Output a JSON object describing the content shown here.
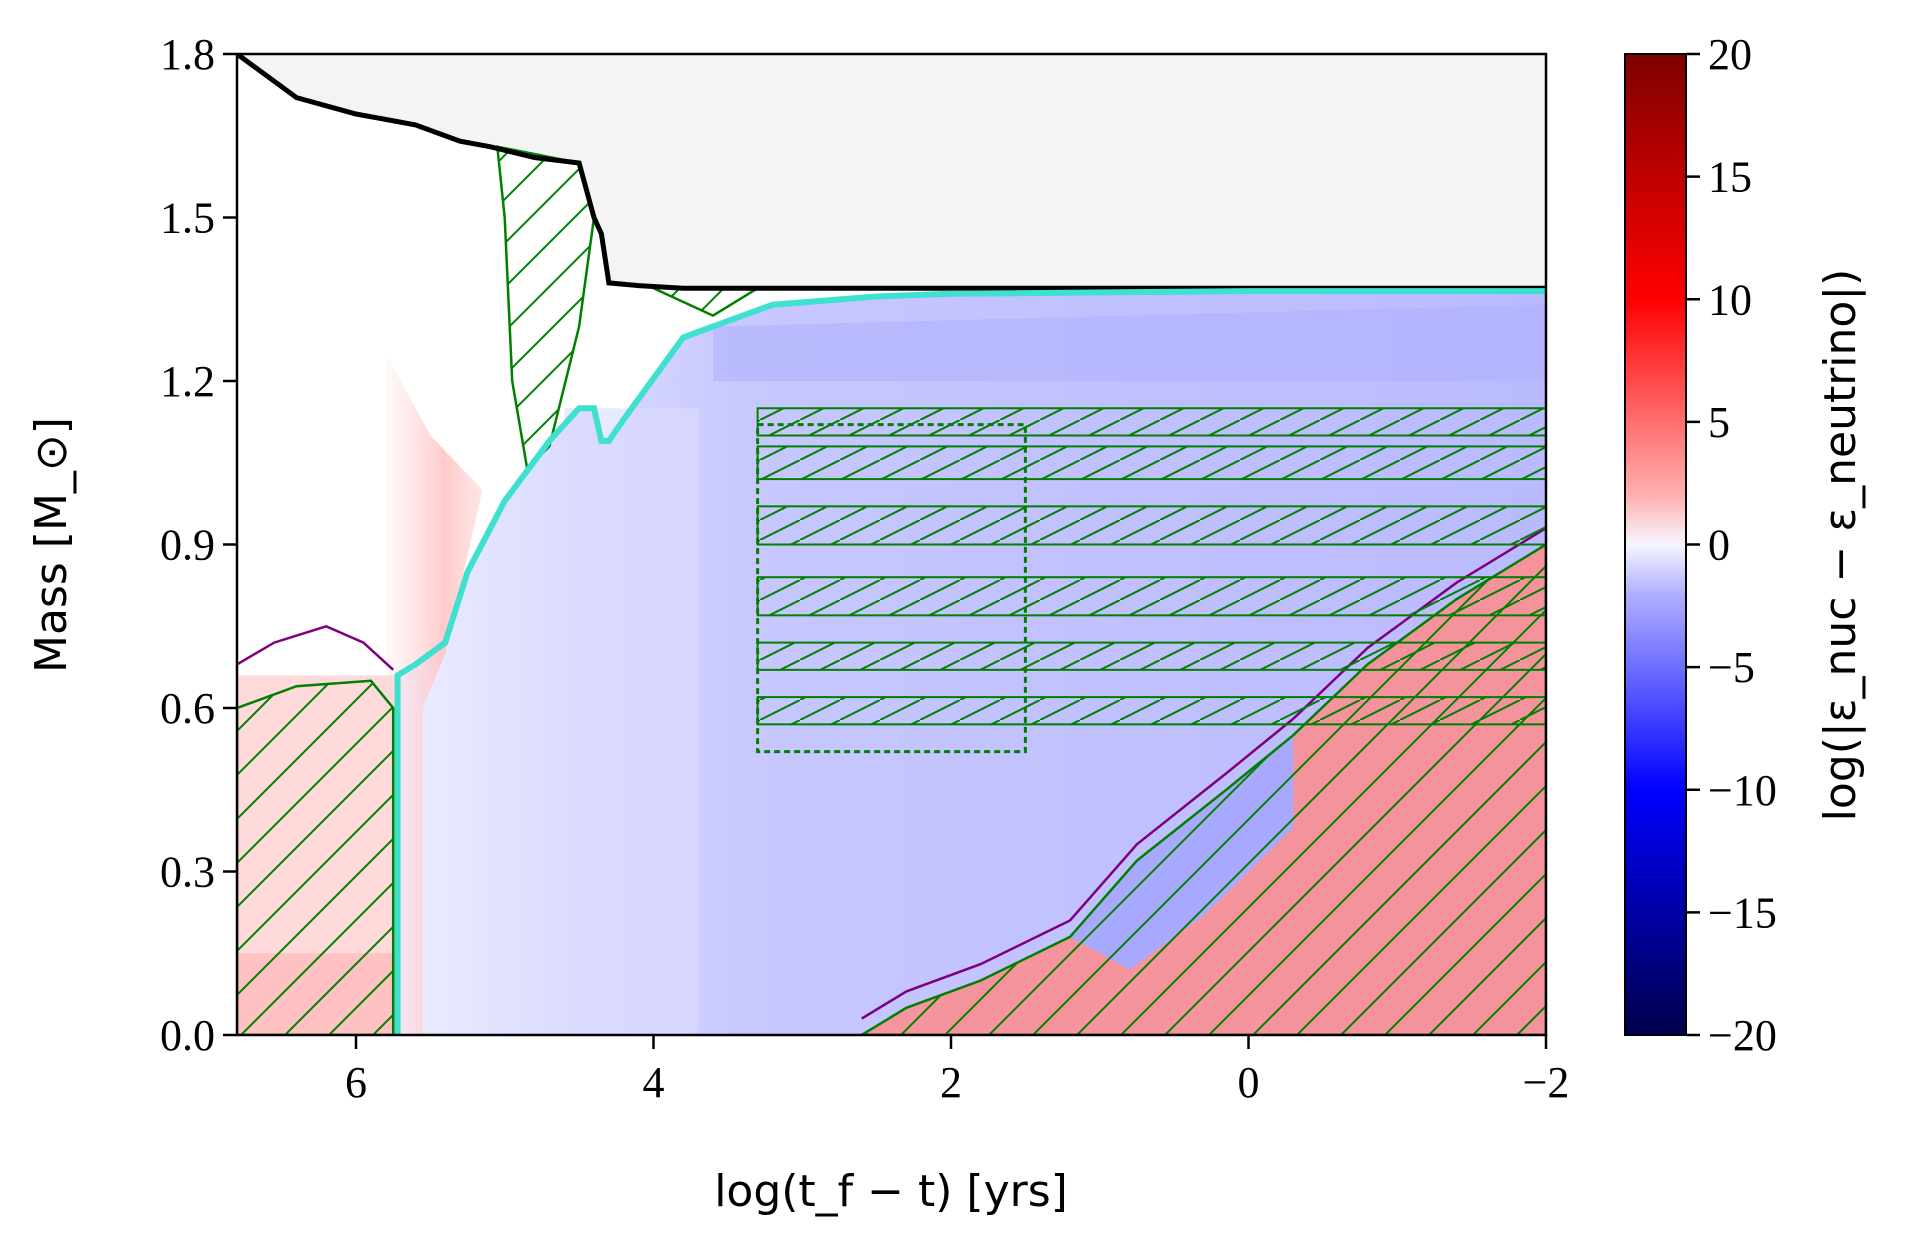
{
  "chart_data": {
    "type": "heatmap",
    "title": "",
    "xlabel": "log(t_f − t) [yrs]",
    "ylabel": "Mass [M_⊙]",
    "xlim": [
      6.8,
      -2
    ],
    "ylim": [
      0,
      1.8
    ],
    "x_ticks": [
      6,
      4,
      2,
      0,
      -2
    ],
    "x_tick_labels": [
      "6",
      "4",
      "2",
      "0",
      "−2"
    ],
    "y_ticks": [
      0.0,
      0.3,
      0.6,
      0.9,
      1.2,
      1.5,
      1.8
    ],
    "y_tick_labels": [
      "0.0",
      "0.3",
      "0.6",
      "0.9",
      "1.2",
      "1.5",
      "1.8"
    ],
    "colorbar": {
      "label": "log(|ε_nuc − ε_neutrino|)",
      "range": [
        -20,
        20
      ],
      "ticks": [
        20,
        15,
        10,
        5,
        0,
        -5,
        -10,
        -15,
        -20
      ],
      "tick_labels": [
        "20",
        "15",
        "10",
        "5",
        "0",
        "−5",
        "−10",
        "−15",
        "−20"
      ],
      "colormap": "seismic"
    },
    "series": [
      {
        "role": "total-mass",
        "color": "#000000",
        "x": [
          6.8,
          6.4,
          6.0,
          5.6,
          5.3,
          5.1,
          4.8,
          4.5,
          4.4,
          4.35,
          4.3,
          4.1,
          3.8,
          2.0,
          -2.0
        ],
        "y": [
          1.8,
          1.72,
          1.69,
          1.67,
          1.64,
          1.63,
          1.61,
          1.6,
          1.5,
          1.47,
          1.38,
          1.375,
          1.37,
          1.37,
          1.37
        ]
      },
      {
        "role": "core-boundary",
        "color": "#40E0D0",
        "x": [
          5.72,
          5.72,
          5.6,
          5.4,
          5.25,
          5.0,
          4.7,
          4.5,
          4.4,
          4.35,
          4.3,
          4.2,
          3.8,
          3.2,
          2.5,
          2.0,
          0.0,
          -2.0
        ],
        "y": [
          0.0,
          0.66,
          0.68,
          0.72,
          0.85,
          0.98,
          1.09,
          1.15,
          1.15,
          1.09,
          1.09,
          1.13,
          1.28,
          1.34,
          1.355,
          1.36,
          1.365,
          1.365
        ]
      }
    ],
    "colors": {
      "convection": "#007f00",
      "overshoot": "#7f007f",
      "envelope": "#f4f4f4",
      "cooling": "#b4b4ff",
      "heating": "#ff8c8c"
    }
  }
}
